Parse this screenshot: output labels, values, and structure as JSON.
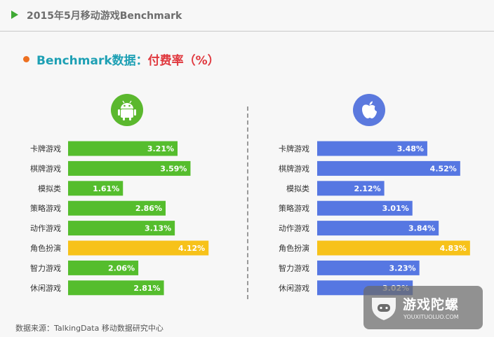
{
  "header": {
    "title": "2015年5月移动游戏Benchmark"
  },
  "section": {
    "heading_prefix": "Benchmark数据：",
    "heading_metric": "付费率（%）"
  },
  "icons": {
    "left_platform": "android-icon",
    "right_platform": "apple-icon",
    "header_marker": "play-icon",
    "bullet": "dot-icon"
  },
  "colors": {
    "android_bar": "#55bd2d",
    "ios_bar": "#5677e2",
    "highlight_bar": "#f7c21a",
    "heading_teal": "#1ea0b4",
    "heading_red": "#e0383e"
  },
  "chart_data": [
    {
      "type": "bar",
      "orientation": "horizontal",
      "platform": "android-icon",
      "categories": [
        "卡牌游戏",
        "棋牌游戏",
        "模拟类",
        "策略游戏",
        "动作游戏",
        "角色扮演",
        "智力游戏",
        "休闲游戏"
      ],
      "values": [
        3.21,
        3.59,
        1.61,
        2.86,
        3.13,
        4.12,
        2.06,
        2.81
      ],
      "value_labels": [
        "3.21%",
        "3.59%",
        "1.61%",
        "2.86%",
        "3.13%",
        "4.12%",
        "2.06%",
        "2.81%"
      ],
      "highlight_category": "角色扮演",
      "xlim": [
        0,
        5
      ],
      "grid": false
    },
    {
      "type": "bar",
      "orientation": "horizontal",
      "platform": "apple-icon",
      "categories": [
        "卡牌游戏",
        "棋牌游戏",
        "模拟类",
        "策略游戏",
        "动作游戏",
        "角色扮演",
        "智力游戏",
        "休闲游戏"
      ],
      "values": [
        3.48,
        4.52,
        2.12,
        3.01,
        3.84,
        4.83,
        3.23,
        3.02
      ],
      "value_labels": [
        "3.48%",
        "4.52%",
        "2.12%",
        "3.01%",
        "3.84%",
        "4.83%",
        "3.23%",
        "3.02%"
      ],
      "highlight_category": "角色扮演",
      "xlim": [
        0,
        5
      ],
      "grid": false
    }
  ],
  "footer": {
    "source": "数据来源：TalkingData 移动数据研究中心"
  },
  "watermark": {
    "name": "游戏陀螺",
    "url": "YOUXITUOLUO.COM"
  }
}
